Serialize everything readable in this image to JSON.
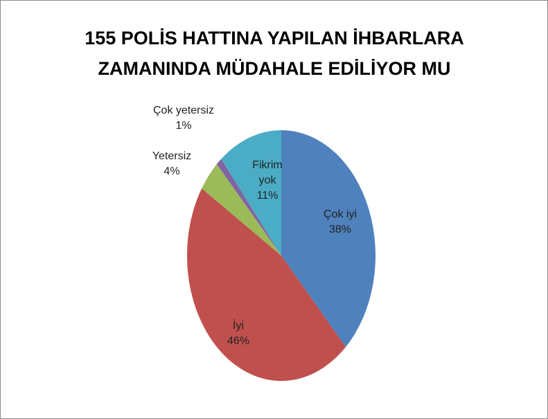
{
  "chart_data": {
    "type": "pie",
    "title": "155 POLİS HATTINA YAPILAN İHBARLARA ZAMANINDA MÜDAHALE EDİLİYOR MU",
    "categories": [
      "Çok iyi",
      "İyi",
      "Yetersiz",
      "Çok yetersiz",
      "Fikrim yok"
    ],
    "values": [
      38,
      46,
      4,
      1,
      11
    ],
    "value_labels": [
      "38%",
      "46%",
      "4%",
      "1%",
      "11%"
    ],
    "colors": [
      "#4f81bd",
      "#c0504d",
      "#9bbb59",
      "#8064a2",
      "#4bacc6"
    ]
  }
}
